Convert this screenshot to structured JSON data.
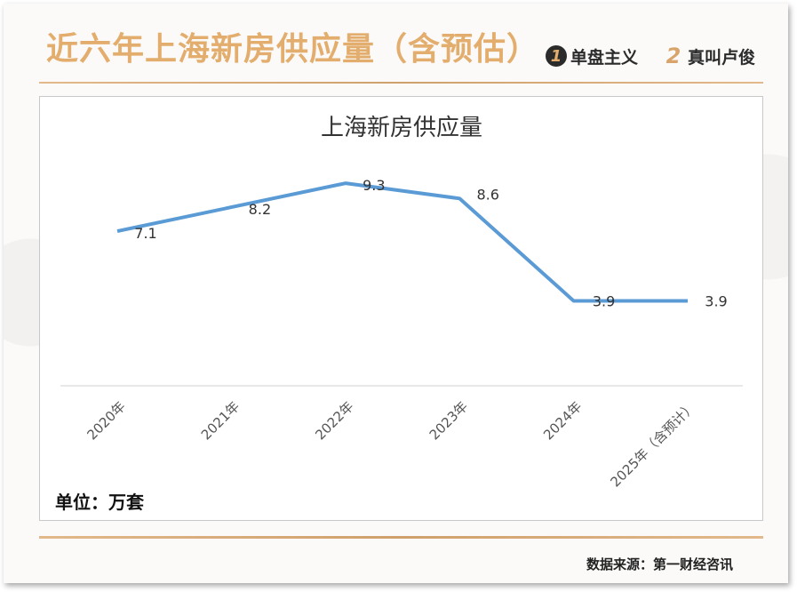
{
  "header": {
    "title": "近六年上海新房供应量（含预估）",
    "brands": [
      {
        "badge": "1",
        "name": "单盘主义"
      },
      {
        "badge": "2",
        "name": "真叫卢俊"
      }
    ]
  },
  "unit_label": "单位：万套",
  "source": "数据来源：第一财经咨讯",
  "colors": {
    "title": "#e3ad6d",
    "line": "#5b9bd5",
    "rule": "#cfa06b"
  },
  "chart_data": {
    "type": "line",
    "title": "上海新房供应量",
    "categories": [
      "2020年",
      "2021年",
      "2022年",
      "2023年",
      "2024年",
      "2025年（含预计）"
    ],
    "series": [
      {
        "values": [
          7.1,
          8.2,
          9.3,
          8.6,
          3.9,
          3.9
        ]
      }
    ],
    "data_labels": [
      "7.1",
      "8.2",
      "9.3",
      "8.6",
      "3.9",
      "3.9"
    ],
    "ylim": [
      0,
      12
    ],
    "grid": false,
    "legend": "none"
  }
}
